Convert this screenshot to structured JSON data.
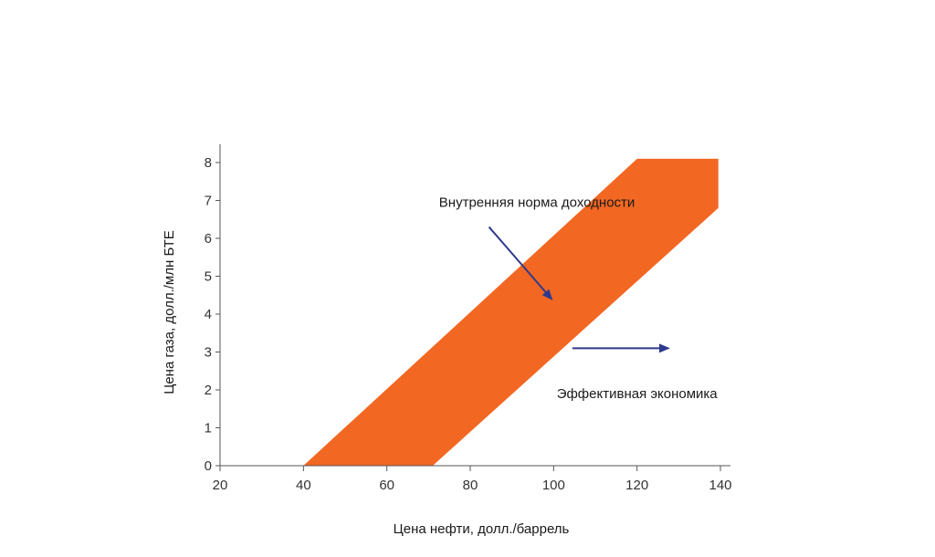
{
  "chart_data": {
    "type": "area",
    "xlabel": "Цена нефти, долл./баррель",
    "ylabel": "Цена газа, долл./млн БТЕ",
    "xlim": [
      20,
      140
    ],
    "ylim": [
      0,
      8
    ],
    "x_ticks": [
      20,
      40,
      60,
      80,
      100,
      120,
      140
    ],
    "y_ticks": [
      0,
      1,
      2,
      3,
      4,
      5,
      6,
      7,
      8
    ],
    "band": {
      "color": "#F26722",
      "polygon": [
        {
          "x": 40,
          "y": 0
        },
        {
          "x": 120,
          "y": 8.1
        },
        {
          "x": 139.5,
          "y": 8.1
        },
        {
          "x": 139.5,
          "y": 6.8
        },
        {
          "x": 71,
          "y": 0
        }
      ]
    },
    "annotations": [
      {
        "text": "Внутренняя норма доходности",
        "text_at": {
          "x": 96,
          "y": 6.95
        },
        "arrow_from": {
          "x": 84.5,
          "y": 6.3
        },
        "arrow_to": {
          "x": 99.5,
          "y": 4.4
        }
      },
      {
        "text": "Эффективная экономика",
        "text_at": {
          "x": 120,
          "y": 1.9
        },
        "arrow_from": {
          "x": 104.5,
          "y": 3.1
        },
        "arrow_to": {
          "x": 127.5,
          "y": 3.1
        }
      }
    ],
    "arrow_color": "#2E3A8C",
    "axis_color": "#555555",
    "grid": false
  }
}
